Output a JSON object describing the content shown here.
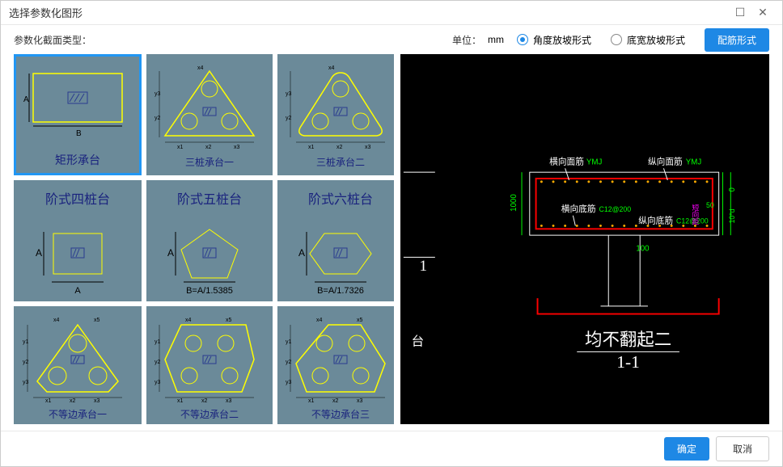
{
  "window": {
    "title": "选择参数化图形"
  },
  "toolbar": {
    "section_type_label": "参数化截面类型：",
    "unit_label": "单位：",
    "unit_value": "mm",
    "radio1": "角度放坡形式",
    "radio2": "底宽放坡形式",
    "radio_selected": 1,
    "reinforce_btn": "配筋形式"
  },
  "shapes": [
    {
      "label": "矩形承台",
      "type": "rect",
      "selected": true
    },
    {
      "label": "三桩承台一",
      "type": "tri3"
    },
    {
      "label": "三桩承台二",
      "type": "tri3b"
    },
    {
      "label": "阶式四桩台",
      "type": "step4",
      "sub": "A"
    },
    {
      "label": "阶式五桩台",
      "type": "step5",
      "sub": "B=A/1.5385"
    },
    {
      "label": "阶式六桩台",
      "type": "step6",
      "sub": "B=A/1.7326"
    },
    {
      "label": "不等边承台一",
      "type": "uneq1"
    },
    {
      "label": "不等边承台二",
      "type": "uneq2"
    },
    {
      "label": "不等边承台三",
      "type": "uneq3"
    }
  ],
  "cad": {
    "labels": {
      "h_top": "横向面筋",
      "h_top_val": "YMJ",
      "v_top": "纵向面筋",
      "v_top_val": "YMJ",
      "h_bot": "横向底筋",
      "h_bot_val": "C12@200",
      "v_bot": "纵向底筋",
      "v_bot_val": "C12@200",
      "dim1": "1000",
      "dim2": "1",
      "dim3": "100",
      "dim4": "0",
      "dim5": "10*d",
      "title1": "均不翻起二",
      "title2": "1-1"
    },
    "colors": {
      "outline": "#ffffff",
      "rebar": "#ff0000",
      "rebar_dot": "#ffaa00",
      "text": "#ffffff",
      "green": "#00ff00",
      "cyan": "#00ffff",
      "magenta": "#ff00ff"
    }
  },
  "footer": {
    "ok": "确定",
    "cancel": "取消"
  }
}
